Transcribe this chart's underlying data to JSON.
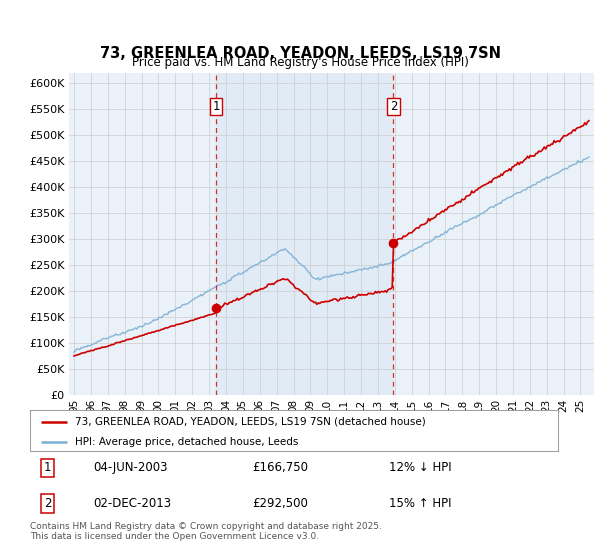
{
  "title": "73, GREENLEA ROAD, YEADON, LEEDS, LS19 7SN",
  "subtitle": "Price paid vs. HM Land Registry's House Price Index (HPI)",
  "ylabel_ticks": [
    "£0",
    "£50K",
    "£100K",
    "£150K",
    "£200K",
    "£250K",
    "£300K",
    "£350K",
    "£400K",
    "£450K",
    "£500K",
    "£550K",
    "£600K"
  ],
  "ytick_values": [
    0,
    50000,
    100000,
    150000,
    200000,
    250000,
    300000,
    350000,
    400000,
    450000,
    500000,
    550000,
    600000
  ],
  "xlim_start": 1994.7,
  "xlim_end": 2025.8,
  "ylim_min": 0,
  "ylim_max": 620000,
  "purchase1_date": 2003.42,
  "purchase1_price": 166750,
  "purchase2_date": 2013.92,
  "purchase2_price": 292500,
  "red_line_color": "#cc0000",
  "blue_line_color": "#7ab0d4",
  "dashed_line_color": "#cc0000",
  "shading_color": "#dce8f5",
  "grid_color": "#cccccc",
  "legend_label_red": "73, GREENLEA ROAD, YEADON, LEEDS, LS19 7SN (detached house)",
  "legend_label_blue": "HPI: Average price, detached house, Leeds",
  "annotation1_date": "04-JUN-2003",
  "annotation1_price": "£166,750",
  "annotation1_hpi": "12% ↓ HPI",
  "annotation2_date": "02-DEC-2013",
  "annotation2_price": "£292,500",
  "annotation2_hpi": "15% ↑ HPI",
  "footer": "Contains HM Land Registry data © Crown copyright and database right 2025.\nThis data is licensed under the Open Government Licence v3.0.",
  "background_color": "#eaf1f8",
  "fig_background": "#ffffff"
}
